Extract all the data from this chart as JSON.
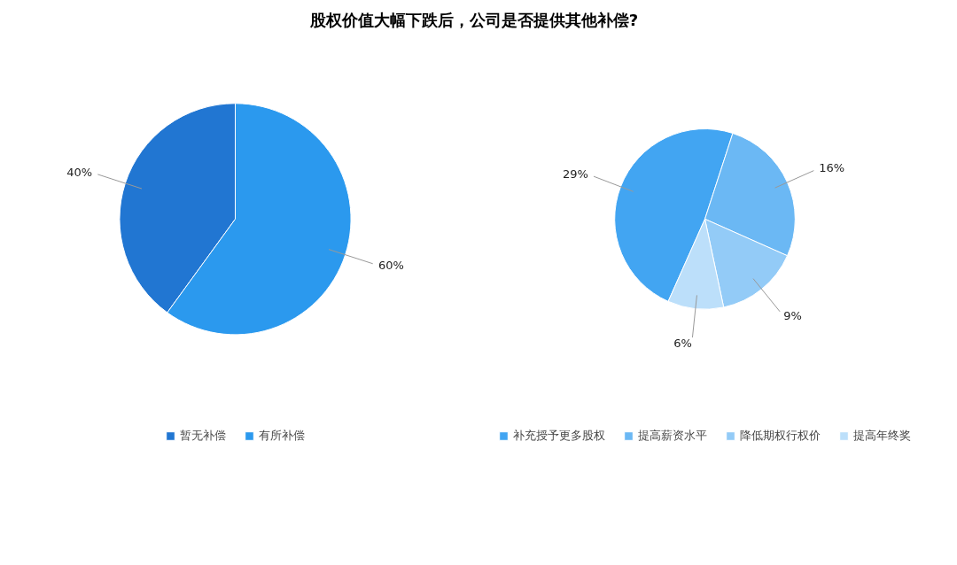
{
  "chart_data": [
    {
      "type": "pie",
      "title": "股权价值大幅下跌后，公司是否提供其他补偿?",
      "categories": [
        "暂无补偿",
        "有所补偿"
      ],
      "values": [
        40,
        60
      ],
      "colors": [
        "#2176d2",
        "#2b99ee"
      ],
      "value_labels": [
        "40%",
        "60%"
      ],
      "legend": "bottom"
    },
    {
      "type": "pie",
      "categories": [
        "补充授予更多股权",
        "提高薪资水平",
        "降低期权行权价",
        "提高年终奖"
      ],
      "values": [
        29,
        16,
        9,
        6
      ],
      "colors": [
        "#42a5f2",
        "#6bb8f4",
        "#93cbf7",
        "#bcdffa"
      ],
      "value_labels": [
        "29%",
        "16%",
        "9%",
        "6%"
      ],
      "legend": "bottom"
    }
  ]
}
